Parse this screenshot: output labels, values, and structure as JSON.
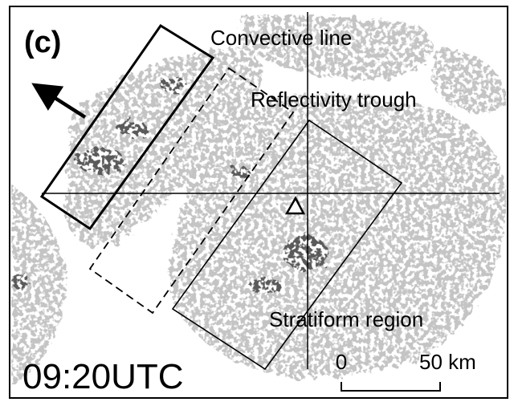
{
  "panel": {
    "label": "(c)",
    "time": "09:20UTC"
  },
  "annotations": {
    "convective": "Convective line",
    "trough": "Reflectivity trough",
    "stratiform": "Stratiform region"
  },
  "scale_bar": {
    "start": "0",
    "end": "50 km"
  }
}
